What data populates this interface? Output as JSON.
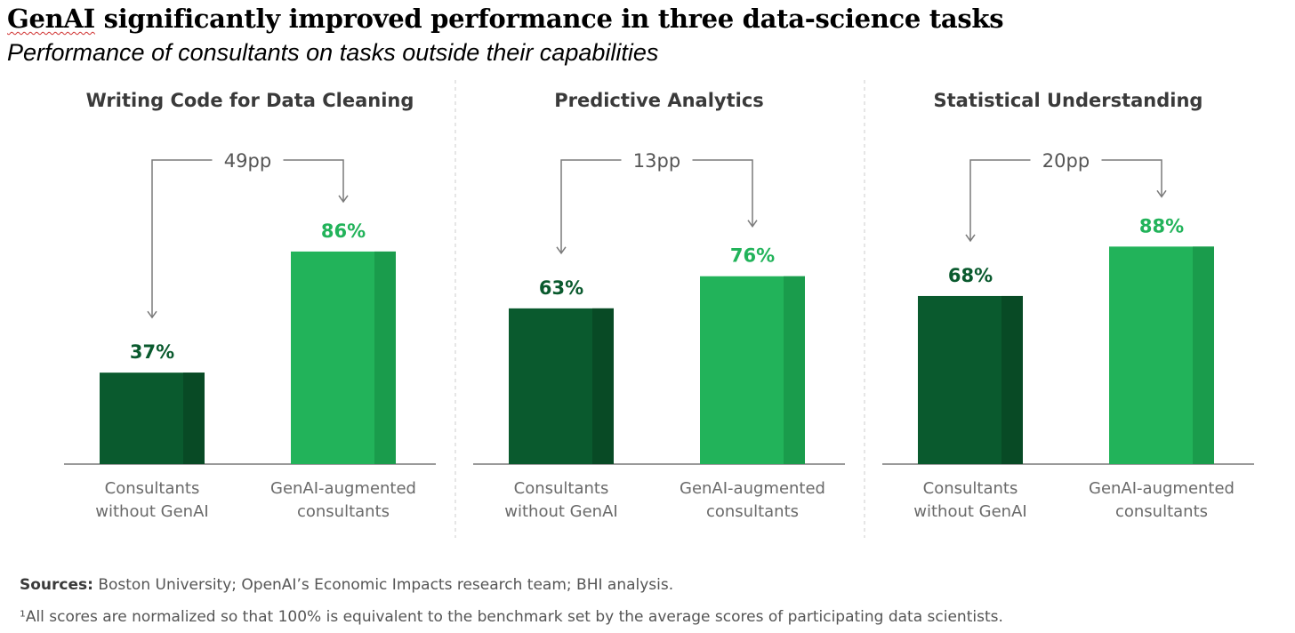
{
  "header": {
    "title_highlight": "GenAI",
    "title_rest": " significantly improved performance in three data-science tasks",
    "subtitle": "Performance of consultants on tasks outside their capabilities"
  },
  "colors": {
    "dark_green": "#0a5a2e",
    "dark_green_shade": "#084a25",
    "light_green": "#22b35a",
    "light_green_shade": "#1a9c4c",
    "axis": "#9a9a9a"
  },
  "chart_data": [
    {
      "type": "bar",
      "title": "Writing Code for Data Cleaning",
      "categories": [
        "Consultants without GenAI",
        "GenAI-augmented consultants"
      ],
      "category_lines": [
        [
          "Consultants",
          "without GenAI"
        ],
        [
          "GenAI-augmented",
          "consultants"
        ]
      ],
      "values": [
        37,
        86
      ],
      "value_labels": [
        "37%",
        "86%"
      ],
      "gap_label": "49pp",
      "ylim": [
        0,
        100
      ]
    },
    {
      "type": "bar",
      "title": "Predictive Analytics",
      "categories": [
        "Consultants without GenAI",
        "GenAI-augmented consultants"
      ],
      "category_lines": [
        [
          "Consultants",
          "without GenAI"
        ],
        [
          "GenAI-augmented",
          "consultants"
        ]
      ],
      "values": [
        63,
        76
      ],
      "value_labels": [
        "63%",
        "76%"
      ],
      "gap_label": "13pp",
      "ylim": [
        0,
        100
      ]
    },
    {
      "type": "bar",
      "title": "Statistical Understanding",
      "categories": [
        "Consultants without GenAI",
        "GenAI-augmented consultants"
      ],
      "category_lines": [
        [
          "Consultants",
          "without GenAI"
        ],
        [
          "GenAI-augmented",
          "consultants"
        ]
      ],
      "values": [
        68,
        88
      ],
      "value_labels": [
        "68%",
        "88%"
      ],
      "gap_label": "20pp",
      "ylim": [
        0,
        100
      ]
    }
  ],
  "footer": {
    "sources_label": "Sources:",
    "sources_text": " Boston University; OpenAI’s Economic Impacts research team; BHI analysis.",
    "footnote": "¹All scores are normalized so that 100% is equivalent to the benchmark set by the average scores of participating data scientists."
  }
}
